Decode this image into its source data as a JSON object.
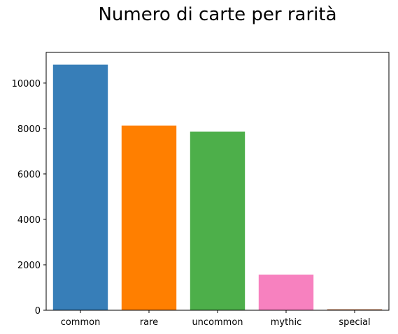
{
  "chart_data": {
    "type": "bar",
    "title": "Numero di carte per rarità",
    "xlabel": "",
    "ylabel": "",
    "categories": [
      "common",
      "rare",
      "uncommon",
      "mythic",
      "special"
    ],
    "values": [
      10810,
      8130,
      7860,
      1570,
      40
    ],
    "colors": [
      "#377eb8",
      "#ff7f00",
      "#4daf4a",
      "#f781bf",
      "#a65628"
    ],
    "ylim": [
      0,
      11350
    ],
    "yticks": [
      0,
      2000,
      4000,
      6000,
      8000,
      10000
    ],
    "grid": false,
    "legend": "none"
  }
}
